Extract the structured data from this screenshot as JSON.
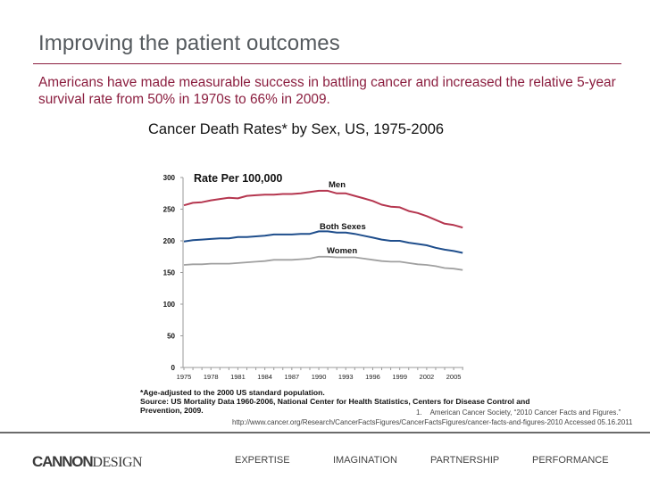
{
  "header": {
    "title": "Improving the patient outcomes",
    "subtitle": "Americans have made measurable success in battling cancer and increased the relative 5-year survival rate from 50% in 1970s to 66% in 2009."
  },
  "colors": {
    "accent": "#8b1e3f",
    "men": "#b5364f",
    "both": "#1f4e8c",
    "women": "#a0a0a0",
    "title_gray": "#555a5e"
  },
  "chart_data": {
    "type": "line",
    "title": "Cancer Death Rates* by Sex, US, 1975-2006",
    "ylabel": "Rate Per 100,000",
    "xlabel": "",
    "ylim": [
      0,
      300
    ],
    "xlim": [
      1975,
      2006
    ],
    "yticks": [
      0,
      50,
      100,
      150,
      200,
      250,
      300
    ],
    "xticks": [
      1975,
      1978,
      1981,
      1984,
      1987,
      1990,
      1993,
      1996,
      1999,
      2002,
      2005
    ],
    "grid": false,
    "legend": "inline-labels",
    "x": [
      1975,
      1976,
      1977,
      1978,
      1979,
      1980,
      1981,
      1982,
      1983,
      1984,
      1985,
      1986,
      1987,
      1988,
      1989,
      1990,
      1991,
      1992,
      1993,
      1994,
      1995,
      1996,
      1997,
      1998,
      1999,
      2000,
      2001,
      2002,
      2003,
      2004,
      2005,
      2006
    ],
    "series": [
      {
        "name": "Men",
        "values": [
          256,
          260,
          261,
          264,
          266,
          268,
          267,
          271,
          272,
          273,
          273,
          274,
          274,
          275,
          277,
          279,
          279,
          275,
          275,
          271,
          267,
          263,
          257,
          254,
          253,
          247,
          244,
          239,
          233,
          227,
          225,
          221
        ]
      },
      {
        "name": "Both Sexes",
        "values": [
          199,
          201,
          202,
          203,
          204,
          204,
          206,
          206,
          207,
          208,
          210,
          210,
          210,
          211,
          211,
          215,
          215,
          213,
          213,
          211,
          208,
          205,
          202,
          200,
          200,
          197,
          195,
          193,
          189,
          186,
          184,
          181
        ]
      },
      {
        "name": "Women",
        "values": [
          162,
          163,
          163,
          164,
          164,
          164,
          165,
          166,
          167,
          168,
          170,
          170,
          170,
          171,
          172,
          175,
          175,
          174,
          174,
          174,
          172,
          170,
          168,
          167,
          167,
          165,
          163,
          162,
          160,
          157,
          156,
          154
        ]
      }
    ],
    "annotations": [
      "Men",
      "Both Sexes",
      "Women"
    ]
  },
  "notes": {
    "line1": "*Age-adjusted to the 2000 US standard population.",
    "line2": "Source: US Mortality Data 1960-2006, National Center for Health Statistics, Centers for Disease Control and",
    "line3": "Prevention, 2009."
  },
  "reference": {
    "number": "1.",
    "citation": "American Cancer Society, “2010 Cancer Facts and Figures.”",
    "url_line": "http://www.cancer.org/Research/CancerFactsFigures/CancerFactsFigures/cancer-facts-and-figures-2010  Accessed 05.16.2011"
  },
  "footer": {
    "logo_bold": "CANNON",
    "logo_light": "DESIGN",
    "nav": [
      "EXPERTISE",
      "IMAGINATION",
      "PARTNERSHIP",
      "PERFORMANCE"
    ]
  }
}
